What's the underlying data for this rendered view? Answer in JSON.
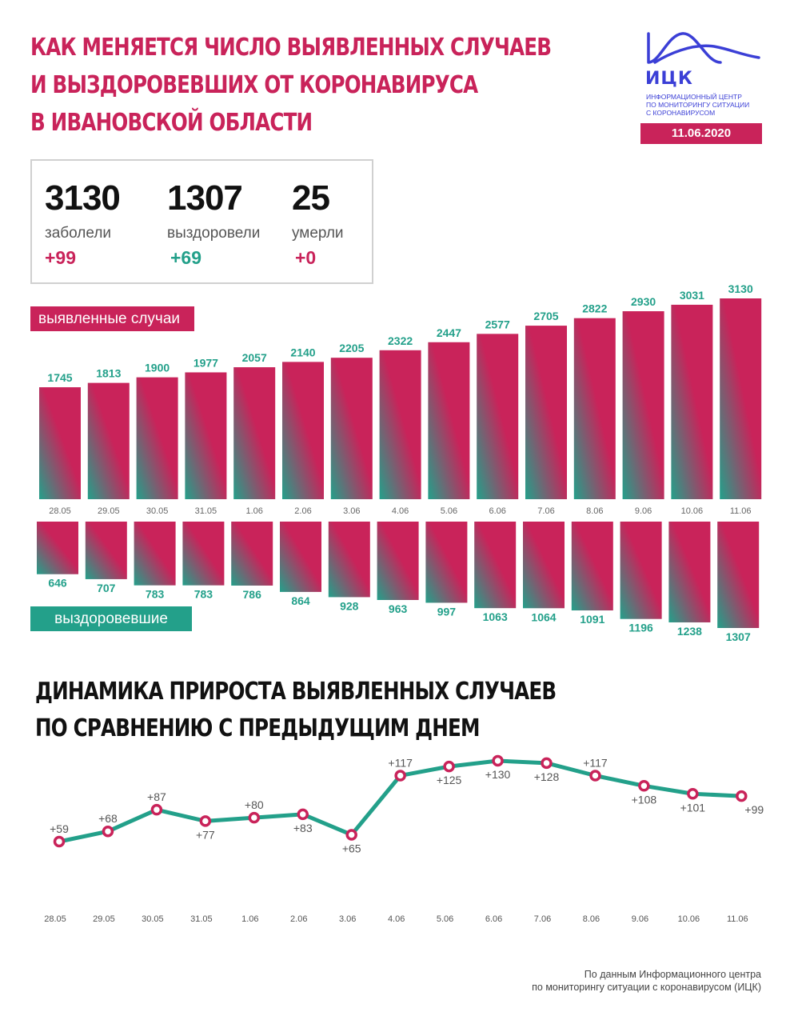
{
  "header": {
    "title_lines": [
      "КАК МЕНЯЕТСЯ ЧИСЛО ВЫЯВЛЕННЫХ СЛУЧАЕВ",
      "И ВЫЗДОРОВЕВШИХ ОТ КОРОНАВИРУСА",
      "В ИВАНОВСКОЙ ОБЛАСТИ"
    ],
    "logo_name": "ИЦК",
    "logo_desc_lines": [
      "ИНФОРМАЦИОННЫЙ ЦЕНТР",
      "ПО МОНИТОРИНГУ СИТУАЦИИ",
      "С КОРОНАВИРУСОМ"
    ],
    "date": "11.06.2020"
  },
  "stats": [
    {
      "value": "3130",
      "label": "заболели",
      "delta": "+99"
    },
    {
      "value": "1307",
      "label": "выздоровели",
      "delta": "+69"
    },
    {
      "value": "25",
      "label": "умерли",
      "delta": "+0"
    }
  ],
  "tags": {
    "cases": "выявленные случаи",
    "recovered": "выздоровевшие"
  },
  "subtitle_lines": [
    "ДИНАМИКА ПРИРОСТА ВЫЯВЛЕННЫХ СЛУЧАЕВ",
    "ПО СРАВНЕНИЮ С ПРЕДЫДУЩИМ ДНЕМ"
  ],
  "source_lines": [
    "По данным Информационного центра",
    "по мониторингу ситуации с коронавирусом (ИЦК)"
  ],
  "colors": {
    "accent": "#c9235a",
    "green": "#23a08a",
    "logo": "#3b3fd6"
  },
  "chart_data": [
    {
      "type": "bar",
      "categories": [
        "28.05",
        "29.05",
        "30.05",
        "31.05",
        "1.06",
        "2.06",
        "3.06",
        "4.06",
        "5.06",
        "6.06",
        "7.06",
        "8.06",
        "9.06",
        "10.06",
        "11.06"
      ],
      "series": [
        {
          "name": "выявленные случаи",
          "values": [
            1745,
            1813,
            1900,
            1977,
            2057,
            2140,
            2205,
            2322,
            2447,
            2577,
            2705,
            2822,
            2930,
            3031,
            3130
          ]
        },
        {
          "name": "выздоровевшие",
          "values": [
            646,
            707,
            783,
            783,
            786,
            864,
            928,
            963,
            997,
            1063,
            1064,
            1091,
            1196,
            1238,
            1307
          ]
        }
      ]
    },
    {
      "type": "line",
      "categories": [
        "28.05",
        "29.05",
        "30.05",
        "31.05",
        "1.06",
        "2.06",
        "3.06",
        "4.06",
        "5.06",
        "6.06",
        "7.06",
        "8.06",
        "9.06",
        "10.06",
        "11.06"
      ],
      "values": [
        59,
        68,
        87,
        77,
        80,
        83,
        65,
        117,
        125,
        130,
        128,
        117,
        108,
        101,
        99
      ],
      "labels": [
        "+59",
        "+68",
        "+87",
        "+77",
        "+80",
        "+83",
        "+65",
        "+117",
        "+125",
        "+130",
        "+128",
        "+117",
        "+108",
        "+101",
        "+99"
      ]
    }
  ]
}
